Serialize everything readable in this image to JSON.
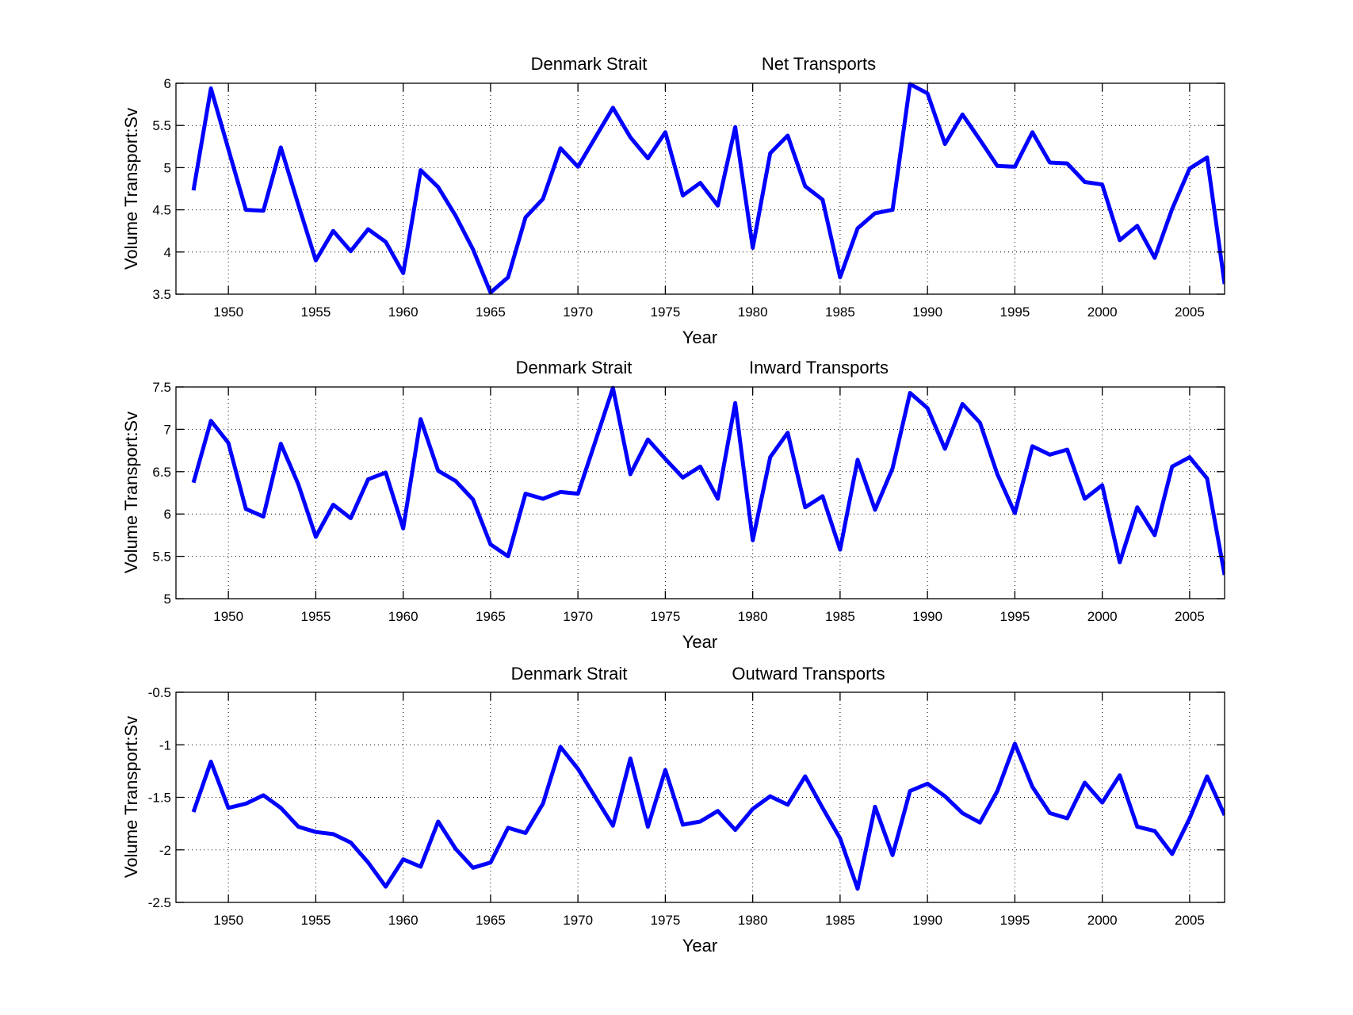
{
  "figure": {
    "line_color": "#0000ff"
  },
  "chart_data": [
    {
      "type": "line",
      "title_left": "Denmark Strait",
      "title_right": "Net Transports",
      "xlabel": "Year",
      "ylabel": "Volume Transport:Sv",
      "xlim": [
        1947,
        2007
      ],
      "ylim": [
        3.5,
        6
      ],
      "xticks": [
        1950,
        1955,
        1960,
        1965,
        1970,
        1975,
        1980,
        1985,
        1990,
        1995,
        2000,
        2005
      ],
      "yticks": [
        3.5,
        4,
        4.5,
        5,
        5.5,
        6
      ],
      "ytick_labels": [
        "3.5",
        "4",
        "4.5",
        "5",
        "5.5",
        "6"
      ],
      "grid": true,
      "series": [
        {
          "name": "Net Transports",
          "x": [
            1948,
            1949,
            1950,
            1951,
            1952,
            1953,
            1954,
            1955,
            1956,
            1957,
            1958,
            1959,
            1960,
            1961,
            1962,
            1963,
            1964,
            1965,
            1966,
            1967,
            1968,
            1969,
            1970,
            1971,
            1972,
            1973,
            1974,
            1975,
            1976,
            1977,
            1978,
            1979,
            1980,
            1981,
            1982,
            1983,
            1984,
            1985,
            1986,
            1987,
            1988,
            1989,
            1990,
            1991,
            1992,
            1993,
            1994,
            1995,
            1996,
            1997,
            1998,
            1999,
            2000,
            2001,
            2002,
            2003,
            2004,
            2005,
            2006,
            2007
          ],
          "values": [
            4.73,
            5.94,
            5.22,
            4.5,
            4.49,
            5.24,
            4.56,
            3.9,
            4.25,
            4.01,
            4.27,
            4.12,
            3.75,
            4.97,
            4.77,
            4.43,
            4.03,
            3.52,
            3.7,
            4.41,
            4.63,
            5.23,
            5.01,
            5.36,
            5.71,
            5.36,
            5.11,
            5.42,
            4.67,
            4.82,
            4.55,
            5.48,
            4.05,
            5.17,
            5.38,
            4.78,
            4.62,
            3.7,
            4.28,
            4.46,
            4.5,
            5.99,
            5.88,
            5.28,
            5.63,
            5.33,
            5.02,
            5.01,
            5.42,
            5.06,
            5.05,
            4.83,
            4.8,
            4.14,
            4.31,
            3.93,
            4.51,
            4.99,
            5.12,
            3.62
          ]
        }
      ]
    },
    {
      "type": "line",
      "title_left": "Denmark Strait",
      "title_right": "Inward Transports",
      "xlabel": "Year",
      "ylabel": "Volume Transport:Sv",
      "xlim": [
        1947,
        2007
      ],
      "ylim": [
        5,
        7.5
      ],
      "xticks": [
        1950,
        1955,
        1960,
        1965,
        1970,
        1975,
        1980,
        1985,
        1990,
        1995,
        2000,
        2005
      ],
      "yticks": [
        5,
        5.5,
        6,
        6.5,
        7,
        7.5
      ],
      "ytick_labels": [
        "5",
        "5.5",
        "6",
        "6.5",
        "7",
        "7.5"
      ],
      "grid": true,
      "series": [
        {
          "name": "Inward Transports",
          "x": [
            1948,
            1949,
            1950,
            1951,
            1952,
            1953,
            1954,
            1955,
            1956,
            1957,
            1958,
            1959,
            1960,
            1961,
            1962,
            1963,
            1964,
            1965,
            1966,
            1967,
            1968,
            1969,
            1970,
            1971,
            1972,
            1973,
            1974,
            1975,
            1976,
            1977,
            1978,
            1979,
            1980,
            1981,
            1982,
            1983,
            1984,
            1985,
            1986,
            1987,
            1988,
            1989,
            1990,
            1991,
            1992,
            1993,
            1994,
            1995,
            1996,
            1997,
            1998,
            1999,
            2000,
            2001,
            2002,
            2003,
            2004,
            2005,
            2006,
            2007
          ],
          "values": [
            6.37,
            7.1,
            6.84,
            6.06,
            5.97,
            6.83,
            6.35,
            5.73,
            6.11,
            5.95,
            6.41,
            6.49,
            5.83,
            7.12,
            6.51,
            6.39,
            6.17,
            5.64,
            5.5,
            6.24,
            6.18,
            6.26,
            6.24,
            6.86,
            7.49,
            6.47,
            6.88,
            6.65,
            6.43,
            6.56,
            6.18,
            7.31,
            5.69,
            6.67,
            6.96,
            6.08,
            6.21,
            5.58,
            6.64,
            6.05,
            6.54,
            7.43,
            7.25,
            6.77,
            7.3,
            7.08,
            6.47,
            6.01,
            6.8,
            6.7,
            6.76,
            6.18,
            6.34,
            5.43,
            6.08,
            5.75,
            6.56,
            6.67,
            6.42,
            5.28
          ]
        }
      ]
    },
    {
      "type": "line",
      "title_left": "Denmark Strait",
      "title_right": "Outward Transports",
      "xlabel": "Year",
      "ylabel": "Volume Transport:Sv",
      "xlim": [
        1947,
        2007
      ],
      "ylim": [
        -2.5,
        -0.5
      ],
      "xticks": [
        1950,
        1955,
        1960,
        1965,
        1970,
        1975,
        1980,
        1985,
        1990,
        1995,
        2000,
        2005
      ],
      "yticks": [
        -2.5,
        -2,
        -1.5,
        -1,
        -0.5
      ],
      "ytick_labels": [
        "-2.5",
        "-2",
        "-1.5",
        "-1",
        "-0.5"
      ],
      "grid": true,
      "series": [
        {
          "name": "Outward Transports",
          "x": [
            1948,
            1949,
            1950,
            1951,
            1952,
            1953,
            1954,
            1955,
            1956,
            1957,
            1958,
            1959,
            1960,
            1961,
            1962,
            1963,
            1964,
            1965,
            1966,
            1967,
            1968,
            1969,
            1970,
            1971,
            1972,
            1973,
            1974,
            1975,
            1976,
            1977,
            1978,
            1979,
            1980,
            1981,
            1982,
            1983,
            1984,
            1985,
            1986,
            1987,
            1988,
            1989,
            1990,
            1991,
            1992,
            1993,
            1994,
            1995,
            1996,
            1997,
            1998,
            1999,
            2000,
            2001,
            2002,
            2003,
            2004,
            2005,
            2006,
            2007
          ],
          "values": [
            -1.64,
            -1.16,
            -1.6,
            -1.56,
            -1.48,
            -1.6,
            -1.78,
            -1.83,
            -1.85,
            -1.93,
            -2.12,
            -2.35,
            -2.09,
            -2.16,
            -1.73,
            -1.99,
            -2.17,
            -2.12,
            -1.79,
            -1.84,
            -1.56,
            -1.02,
            -1.23,
            -1.5,
            -1.77,
            -1.13,
            -1.78,
            -1.24,
            -1.76,
            -1.73,
            -1.63,
            -1.81,
            -1.61,
            -1.49,
            -1.57,
            -1.3,
            -1.6,
            -1.89,
            -2.37,
            -1.59,
            -2.05,
            -1.44,
            -1.37,
            -1.49,
            -1.65,
            -1.74,
            -1.44,
            -0.99,
            -1.4,
            -1.65,
            -1.7,
            -1.36,
            -1.55,
            -1.29,
            -1.78,
            -1.82,
            -2.04,
            -1.7,
            -1.3,
            -1.67
          ]
        }
      ]
    }
  ]
}
